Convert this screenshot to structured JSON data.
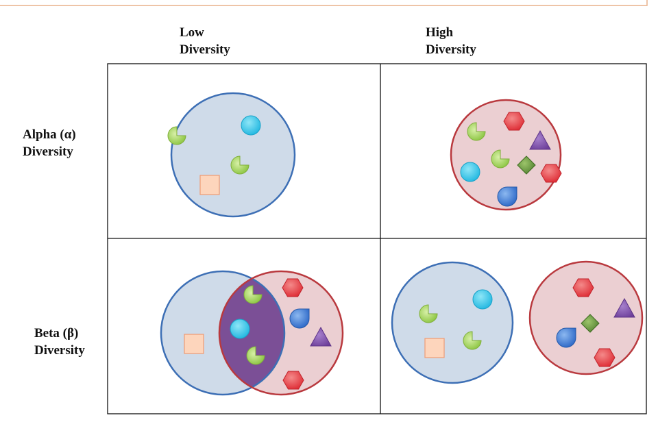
{
  "columns": [
    [
      "Low",
      "Diversity"
    ],
    [
      "High",
      "Diversity"
    ]
  ],
  "rows": [
    [
      "Alpha (α)",
      "Diversity"
    ],
    [
      "Beta (β)",
      "Diversity"
    ]
  ]
}
